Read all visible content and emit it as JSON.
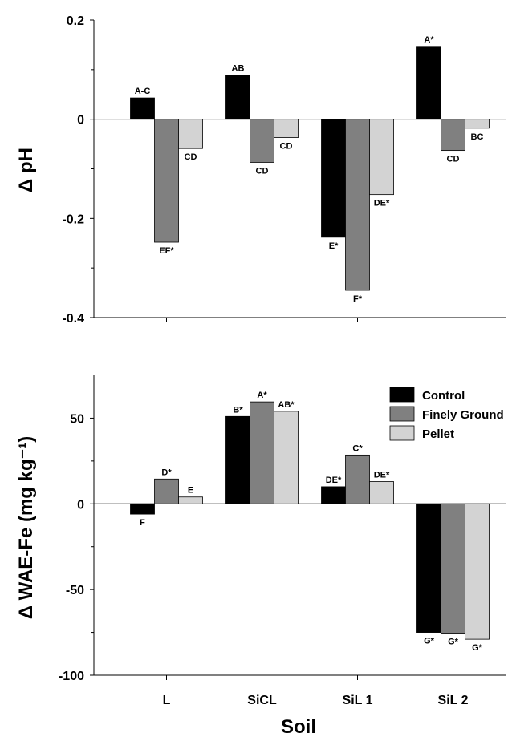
{
  "xlabel": "Soil",
  "categories": [
    "L",
    "SiCL",
    "SiL 1",
    "SiL 2"
  ],
  "colors": {
    "Control": "#000000",
    "Finely Ground": "#808080",
    "Pellet": "#d3d3d3"
  },
  "legend": {
    "placement": "top-right",
    "entries": [
      "Control",
      "Finely Ground",
      "Pellet"
    ]
  },
  "chart_data": [
    {
      "type": "bar",
      "title": "",
      "ylabel": "Δ pH",
      "categories": [
        "L",
        "SiCL",
        "SiL 1",
        "SiL 2"
      ],
      "ylim": [
        -0.4,
        0.2
      ],
      "yticks": [
        -0.4,
        -0.2,
        0,
        0.2
      ],
      "yticks_text": [
        "-0.4",
        "-0.2",
        "0",
        "0.2"
      ],
      "grid": false,
      "series": [
        {
          "name": "Control",
          "values": [
            0.043,
            0.089,
            -0.238,
            0.147
          ],
          "labels": [
            "A-C",
            "AB",
            "E*",
            "A*"
          ]
        },
        {
          "name": "Finely Ground",
          "values": [
            -0.248,
            -0.087,
            -0.345,
            -0.063
          ],
          "labels": [
            "EF*",
            "CD",
            "F*",
            "CD"
          ]
        },
        {
          "name": "Pellet",
          "values": [
            -0.059,
            -0.037,
            -0.152,
            -0.018
          ],
          "labels": [
            "CD",
            "CD",
            "DE*",
            "BC"
          ]
        }
      ]
    },
    {
      "type": "bar",
      "title": "",
      "ylabel": "Δ WAE-Fe (mg kg⁻¹)",
      "categories": [
        "L",
        "SiCL",
        "SiL 1",
        "SiL 2"
      ],
      "ylim": [
        -100,
        75
      ],
      "yticks": [
        -100,
        -50,
        0,
        50
      ],
      "yticks_text": [
        "-100",
        "-50",
        "0",
        "50"
      ],
      "grid": false,
      "legend": "top-right",
      "series": [
        {
          "name": "Control",
          "values": [
            -6,
            51,
            10,
            -75
          ],
          "labels": [
            "F",
            "B*",
            "DE*",
            "G*"
          ]
        },
        {
          "name": "Finely Ground",
          "values": [
            14.5,
            59.5,
            28.5,
            -75.5
          ],
          "labels": [
            "D*",
            "A*",
            "C*",
            "G*"
          ]
        },
        {
          "name": "Pellet",
          "values": [
            4,
            54,
            13,
            -79
          ],
          "labels": [
            "E",
            "AB*",
            "DE*",
            "G*"
          ]
        }
      ]
    }
  ]
}
